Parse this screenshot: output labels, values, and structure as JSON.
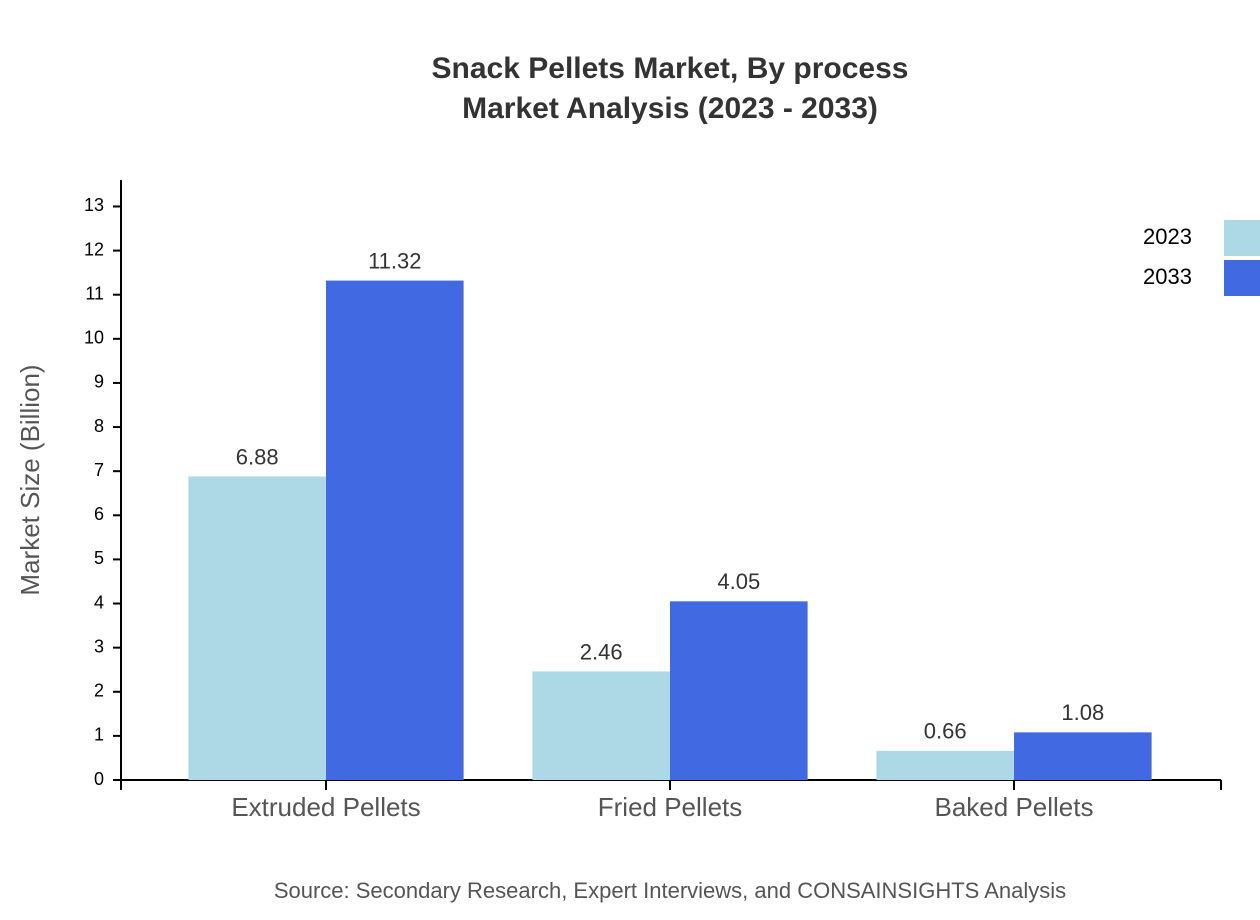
{
  "chart_data": {
    "type": "bar",
    "title": "Snack Pellets Market, By process",
    "subtitle": "Market Analysis (2023 - 2033)",
    "y_label": "Market Size (Billion)",
    "source": "Source: Secondary Research, Expert Interviews, and CONSAINSIGHTS Analysis",
    "categories": [
      "Extruded Pellets",
      "Fried Pellets",
      "Baked Pellets"
    ],
    "series": [
      {
        "name": "2023",
        "color": "#add8e6",
        "values": [
          6.88,
          2.46,
          0.66
        ]
      },
      {
        "name": "2033",
        "color": "#4169e1",
        "values": [
          11.32,
          4.05,
          1.08
        ]
      }
    ],
    "ylim": [
      0,
      13.6
    ],
    "yticks": [
      0,
      1,
      2,
      3,
      4,
      5,
      6,
      7,
      8,
      9,
      10,
      11,
      12,
      13
    ],
    "legend": "top-right"
  }
}
